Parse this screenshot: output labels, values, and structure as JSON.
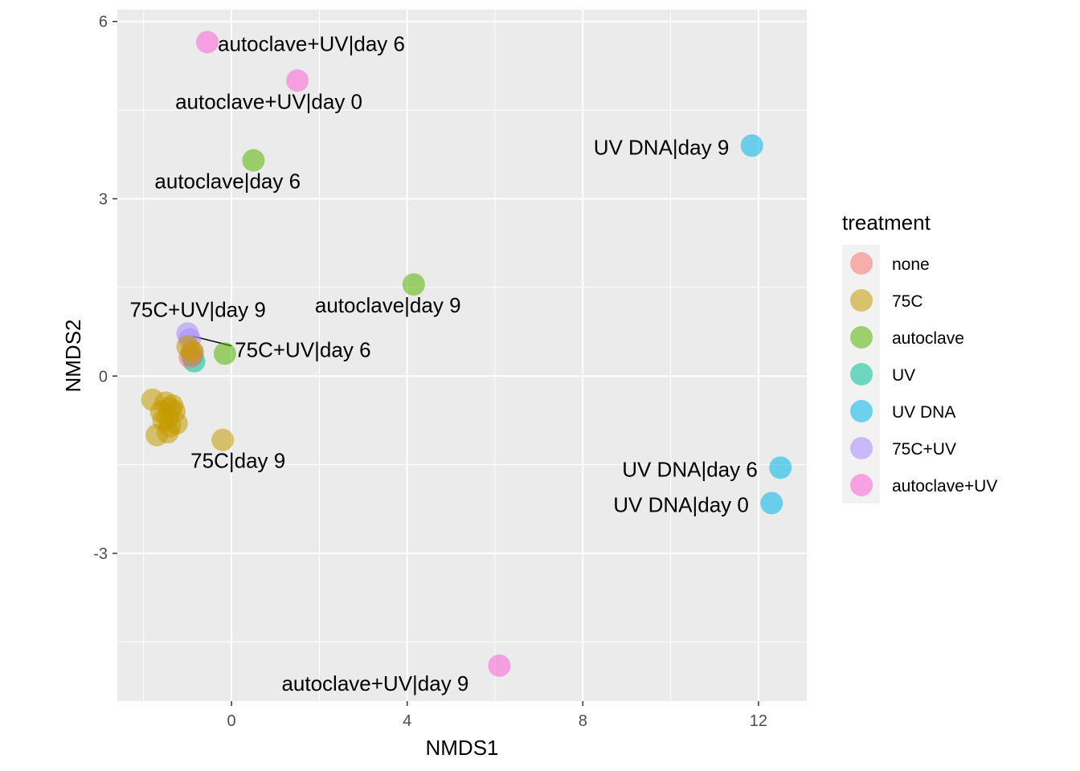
{
  "chart_data": {
    "type": "scatter",
    "xlabel": "NMDS1",
    "ylabel": "NMDS2",
    "xlim": [
      -2.6,
      13.1
    ],
    "ylim": [
      -5.5,
      6.2
    ],
    "x_ticks": [
      0,
      4,
      8,
      12
    ],
    "y_ticks": [
      -3,
      0,
      3,
      6
    ],
    "x_tick_labels": [
      "0",
      "4",
      "8",
      "12"
    ],
    "y_tick_labels": [
      "-3",
      "0",
      "3",
      "6"
    ],
    "grid": true,
    "legend": {
      "title": "treatment",
      "placement": "right",
      "entries": [
        {
          "label": "none",
          "color": "#F8766D"
        },
        {
          "label": "75C",
          "color": "#C49A00"
        },
        {
          "label": "autoclave",
          "color": "#53B400"
        },
        {
          "label": "UV",
          "color": "#00C094"
        },
        {
          "label": "UV DNA",
          "color": "#00B6EB"
        },
        {
          "label": "75C+UV",
          "color": "#A58AFF"
        },
        {
          "label": "autoclave+UV",
          "color": "#FB61D7"
        }
      ]
    },
    "points": [
      {
        "x": -0.55,
        "y": 5.65,
        "group": "autoclave+UV"
      },
      {
        "x": 1.5,
        "y": 5.0,
        "group": "autoclave+UV"
      },
      {
        "x": 6.1,
        "y": -4.9,
        "group": "autoclave+UV"
      },
      {
        "x": 0.5,
        "y": 3.65,
        "group": "autoclave"
      },
      {
        "x": 4.15,
        "y": 1.55,
        "group": "autoclave"
      },
      {
        "x": -0.15,
        "y": 0.38,
        "group": "autoclave"
      },
      {
        "x": 11.85,
        "y": 3.9,
        "group": "UV DNA"
      },
      {
        "x": 12.5,
        "y": -1.55,
        "group": "UV DNA"
      },
      {
        "x": 12.3,
        "y": -2.15,
        "group": "UV DNA"
      },
      {
        "x": -1.0,
        "y": 0.72,
        "group": "75C+UV"
      },
      {
        "x": -0.95,
        "y": 0.62,
        "group": "75C+UV"
      },
      {
        "x": -0.85,
        "y": 0.25,
        "group": "UV"
      },
      {
        "x": -0.9,
        "y": 0.35,
        "group": "UV"
      },
      {
        "x": -0.95,
        "y": 0.32,
        "group": "none"
      },
      {
        "x": -0.88,
        "y": 0.4,
        "group": "none"
      },
      {
        "x": -1.0,
        "y": 0.5,
        "group": "75C"
      },
      {
        "x": -0.9,
        "y": 0.42,
        "group": "75C"
      },
      {
        "x": -0.2,
        "y": -1.08,
        "group": "75C"
      },
      {
        "x": -1.8,
        "y": -0.4,
        "group": "75C"
      },
      {
        "x": -1.7,
        "y": -1.0,
        "group": "75C"
      },
      {
        "x": -1.6,
        "y": -0.6,
        "group": "75C"
      },
      {
        "x": -1.5,
        "y": -0.45,
        "group": "75C"
      },
      {
        "x": -1.45,
        "y": -0.7,
        "group": "75C"
      },
      {
        "x": -1.4,
        "y": -0.85,
        "group": "75C"
      },
      {
        "x": -1.35,
        "y": -0.5,
        "group": "75C"
      },
      {
        "x": -1.3,
        "y": -0.6,
        "group": "75C"
      },
      {
        "x": -1.25,
        "y": -0.8,
        "group": "75C"
      },
      {
        "x": -1.4,
        "y": -0.55,
        "group": "75C"
      },
      {
        "x": -1.55,
        "y": -0.75,
        "group": "75C"
      },
      {
        "x": -1.45,
        "y": -0.95,
        "group": "75C"
      }
    ],
    "annotations": [
      {
        "text": "autoclave+UV|day 6",
        "x": -0.55,
        "y": 5.65
      },
      {
        "text": "autoclave+UV|day 0",
        "x": 1.5,
        "y": 5.0
      },
      {
        "text": "UV DNA|day 9",
        "x": 11.85,
        "y": 3.9
      },
      {
        "text": "autoclave|day 6",
        "x": 0.5,
        "y": 3.65
      },
      {
        "text": "autoclave|day 9",
        "x": 4.15,
        "y": 1.55
      },
      {
        "text": "75C+UV|day 9",
        "x": -1.0,
        "y": 0.72
      },
      {
        "text": "75C+UV|day 6",
        "x": -0.95,
        "y": 0.62
      },
      {
        "text": "75C|day 9",
        "x": -0.2,
        "y": -1.08
      },
      {
        "text": "UV DNA|day 6",
        "x": 12.5,
        "y": -1.55
      },
      {
        "text": "UV DNA|day 0",
        "x": 12.3,
        "y": -2.15
      },
      {
        "text": "autoclave+UV|day 9",
        "x": 6.1,
        "y": -4.9
      }
    ]
  }
}
